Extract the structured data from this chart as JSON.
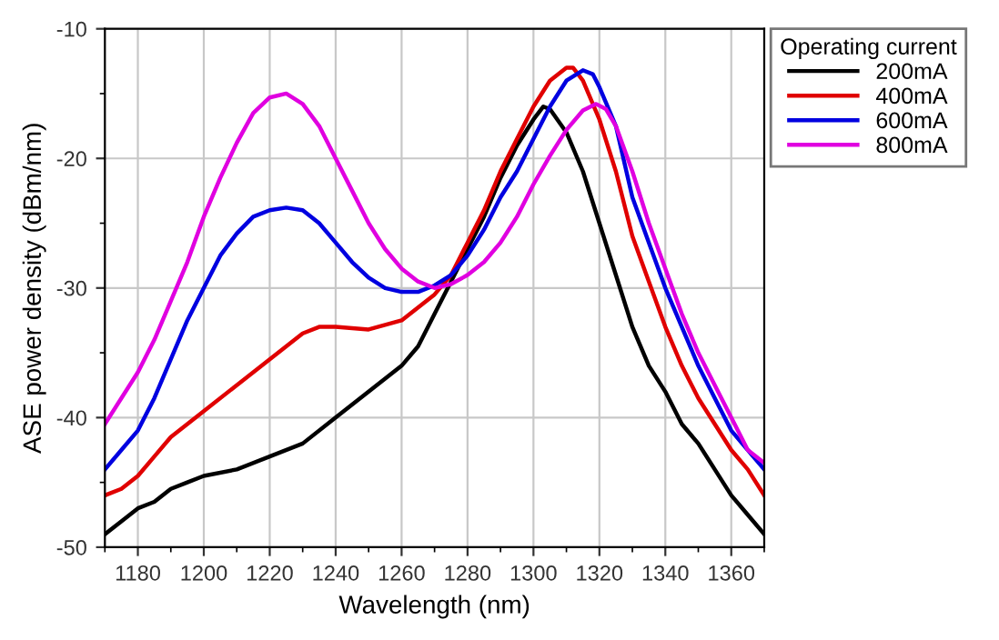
{
  "chart_data": {
    "type": "line",
    "xlabel": "Wavelength (nm)",
    "ylabel": "ASE power density (dBm/nm)",
    "legend_title": "Operating current",
    "xlim": [
      1170,
      1370
    ],
    "xticks": [
      1180,
      1200,
      1220,
      1240,
      1260,
      1280,
      1300,
      1320,
      1340,
      1360
    ],
    "ylim": [
      -50,
      -10
    ],
    "yticks": [
      -50,
      -40,
      -30,
      -20,
      -10
    ],
    "grid": true,
    "legend": "right",
    "marker": "none",
    "line_style": "solid",
    "series": [
      {
        "name": "200mA",
        "color": "#000000",
        "x": [
          1170,
          1175,
          1180,
          1185,
          1190,
          1195,
          1200,
          1210,
          1220,
          1230,
          1240,
          1250,
          1260,
          1265,
          1270,
          1275,
          1280,
          1285,
          1290,
          1295,
          1300,
          1303,
          1305,
          1310,
          1315,
          1320,
          1325,
          1330,
          1335,
          1340,
          1345,
          1350,
          1355,
          1360,
          1365,
          1370
        ],
        "values": [
          -49,
          -48,
          -47,
          -46.5,
          -45.5,
          -45,
          -44.5,
          -44,
          -43,
          -42,
          -40,
          -38,
          -36,
          -34.5,
          -32,
          -29.5,
          -27,
          -24.5,
          -21.5,
          -19,
          -17,
          -16,
          -16.2,
          -18,
          -21,
          -25,
          -29,
          -33,
          -36,
          -38,
          -40.5,
          -42,
          -44,
          -46,
          -47.5,
          -49
        ]
      },
      {
        "name": "400mA",
        "color": "#e00000",
        "x": [
          1170,
          1175,
          1180,
          1185,
          1190,
          1200,
          1210,
          1220,
          1230,
          1235,
          1240,
          1250,
          1260,
          1270,
          1275,
          1280,
          1285,
          1290,
          1295,
          1300,
          1305,
          1310,
          1312,
          1315,
          1320,
          1325,
          1330,
          1335,
          1340,
          1345,
          1350,
          1355,
          1360,
          1365,
          1370
        ],
        "values": [
          -46,
          -45.5,
          -44.5,
          -43,
          -41.5,
          -39.5,
          -37.5,
          -35.5,
          -33.5,
          -33,
          -33,
          -33.2,
          -32.5,
          -30.5,
          -29,
          -26.5,
          -24,
          -21,
          -18.5,
          -16,
          -14,
          -13,
          -13,
          -14,
          -17,
          -21,
          -26,
          -29.5,
          -33,
          -36,
          -38.5,
          -40.5,
          -42.5,
          -44,
          -46
        ]
      },
      {
        "name": "600mA",
        "color": "#0000e0",
        "x": [
          1170,
          1175,
          1180,
          1185,
          1190,
          1195,
          1200,
          1205,
          1210,
          1215,
          1220,
          1225,
          1230,
          1235,
          1240,
          1245,
          1250,
          1255,
          1260,
          1265,
          1270,
          1275,
          1280,
          1285,
          1290,
          1295,
          1300,
          1305,
          1310,
          1315,
          1318,
          1320,
          1325,
          1330,
          1335,
          1340,
          1345,
          1350,
          1355,
          1360,
          1365,
          1370
        ],
        "values": [
          -44,
          -42.5,
          -41,
          -38.5,
          -35.5,
          -32.5,
          -30,
          -27.5,
          -25.8,
          -24.5,
          -24,
          -23.8,
          -24,
          -25,
          -26.5,
          -28,
          -29.2,
          -30,
          -30.3,
          -30.3,
          -29.8,
          -29,
          -27.5,
          -25.5,
          -23,
          -21,
          -18.5,
          -16,
          -14,
          -13.2,
          -13.5,
          -14.5,
          -17.5,
          -23,
          -26.5,
          -30,
          -33,
          -36,
          -38.5,
          -41,
          -42.5,
          -44
        ]
      },
      {
        "name": "800mA",
        "color": "#e000e0",
        "x": [
          1170,
          1175,
          1180,
          1185,
          1190,
          1195,
          1200,
          1205,
          1210,
          1215,
          1220,
          1225,
          1230,
          1235,
          1240,
          1245,
          1250,
          1255,
          1260,
          1265,
          1270,
          1275,
          1280,
          1285,
          1290,
          1295,
          1300,
          1305,
          1310,
          1315,
          1319,
          1322,
          1325,
          1330,
          1335,
          1340,
          1345,
          1350,
          1355,
          1360,
          1365,
          1370
        ],
        "values": [
          -40.5,
          -38.5,
          -36.5,
          -34,
          -31,
          -28,
          -24.5,
          -21.5,
          -18.8,
          -16.5,
          -15.3,
          -15,
          -15.8,
          -17.5,
          -20,
          -22.5,
          -25,
          -27,
          -28.5,
          -29.5,
          -30,
          -29.7,
          -29,
          -28,
          -26.5,
          -24.5,
          -22,
          -19.8,
          -17.8,
          -16.3,
          -15.8,
          -16.2,
          -17.5,
          -21,
          -25,
          -28.5,
          -32,
          -35,
          -37.5,
          -40,
          -42.5,
          -43.5
        ]
      }
    ]
  }
}
